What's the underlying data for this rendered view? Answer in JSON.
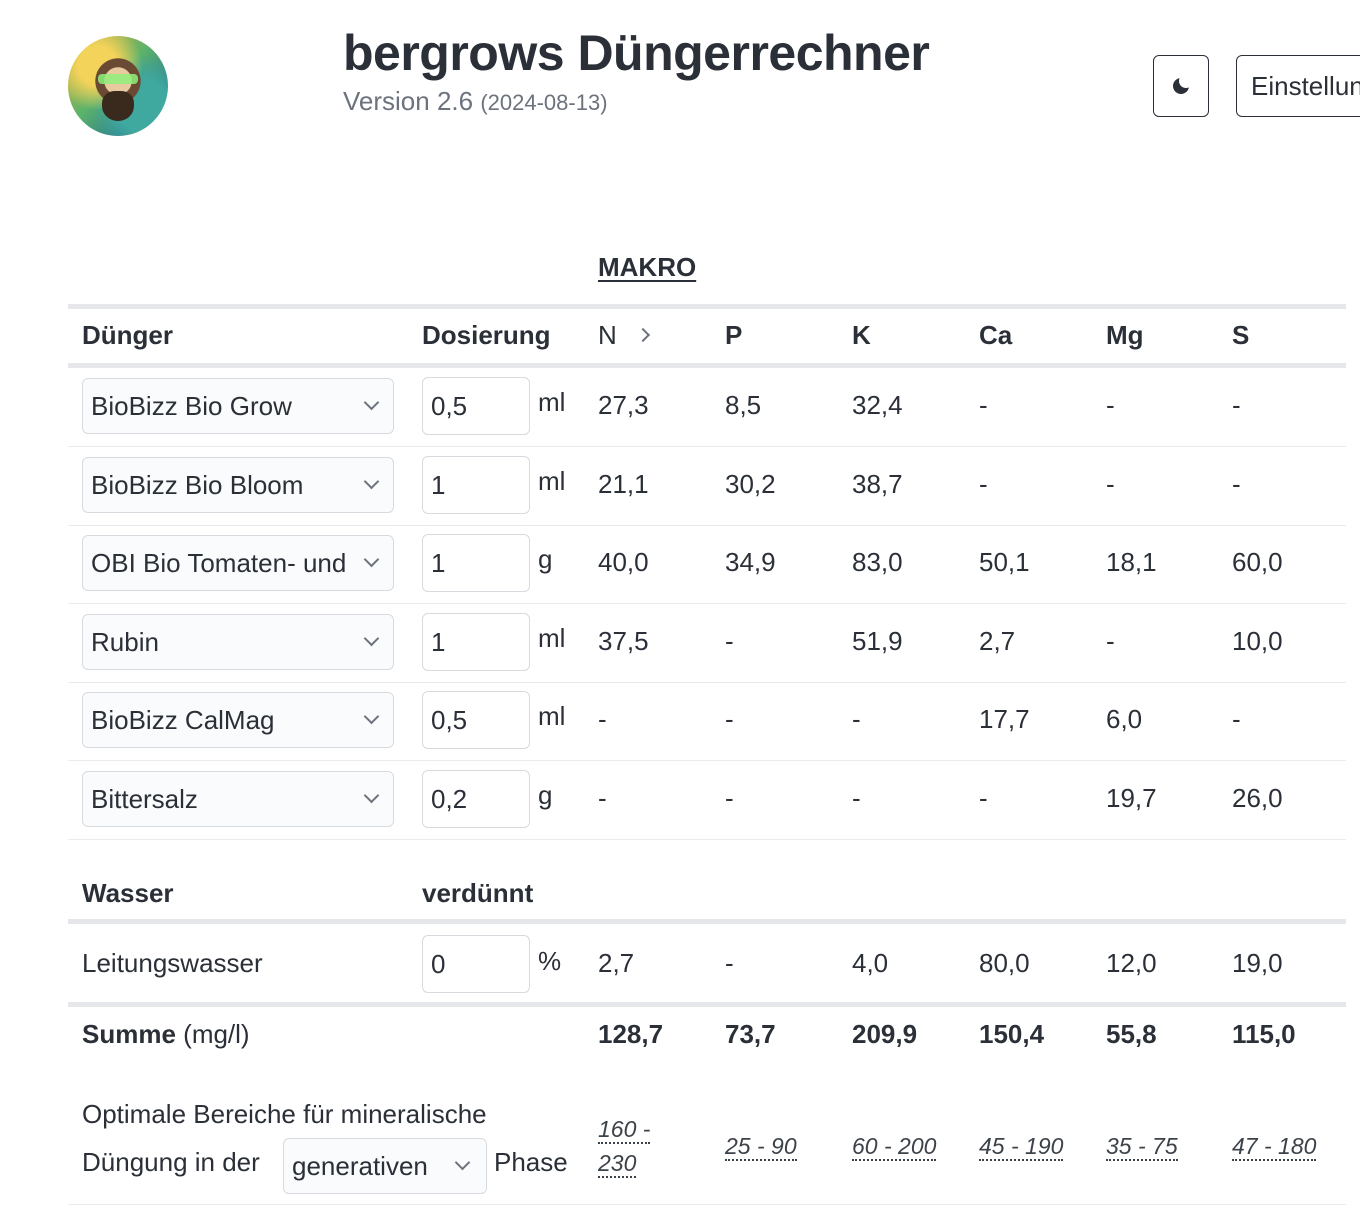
{
  "header": {
    "title": "bergrows Düngerrechner",
    "version": "Version 2.6",
    "date": "(2024-08-13)",
    "settings_label": "Einstellungen",
    "dark_mode_icon": "moon-icon"
  },
  "table": {
    "section_label": "MAKRO",
    "headers": {
      "fertilizer": "Dünger",
      "dosage": "Dosierung",
      "nutrients": [
        "N",
        "P",
        "K",
        "Ca",
        "Mg",
        "S"
      ]
    },
    "rows": [
      {
        "name": "BioBizz Bio Grow",
        "dose": "0,5",
        "unit": "ml",
        "values": [
          "27,3",
          "8,5",
          "32,4",
          "-",
          "-",
          "-"
        ]
      },
      {
        "name": "BioBizz Bio Bloom",
        "dose": "1",
        "unit": "ml",
        "values": [
          "21,1",
          "30,2",
          "38,7",
          "-",
          "-",
          "-"
        ]
      },
      {
        "name": "OBI Bio Tomaten- und",
        "dose": "1",
        "unit": "g",
        "values": [
          "40,0",
          "34,9",
          "83,0",
          "50,1",
          "18,1",
          "60,0"
        ]
      },
      {
        "name": "Rubin",
        "dose": "1",
        "unit": "ml",
        "values": [
          "37,5",
          "-",
          "51,9",
          "2,7",
          "-",
          "10,0"
        ]
      },
      {
        "name": "BioBizz CalMag",
        "dose": "0,5",
        "unit": "ml",
        "values": [
          "-",
          "-",
          "-",
          "17,7",
          "6,0",
          "-"
        ]
      },
      {
        "name": "Bittersalz",
        "dose": "0,2",
        "unit": "g",
        "values": [
          "-",
          "-",
          "-",
          "-",
          "19,7",
          "26,0"
        ]
      }
    ],
    "water": {
      "header_label": "Wasser",
      "header_dilution": "verdünnt",
      "name": "Leitungswasser",
      "dilution": "0",
      "unit": "%",
      "values": [
        "2,7",
        "-",
        "4,0",
        "80,0",
        "12,0",
        "19,0"
      ]
    },
    "sum": {
      "label": "Summe",
      "unit": "(mg/l)",
      "values": [
        "128,7",
        "73,7",
        "209,9",
        "150,4",
        "55,8",
        "115,0"
      ]
    },
    "optimal": {
      "line1": "Optimale Bereiche für mineralische",
      "line2_prefix": "Düngung in der",
      "phase_value": "generativen",
      "line2_suffix": "Phase",
      "n_range_top": "160 -",
      "n_range_bottom": "230",
      "ranges": [
        "25 - 90",
        "60 - 200",
        "45 - 190",
        "35 - 75",
        "47 - 180"
      ]
    }
  }
}
